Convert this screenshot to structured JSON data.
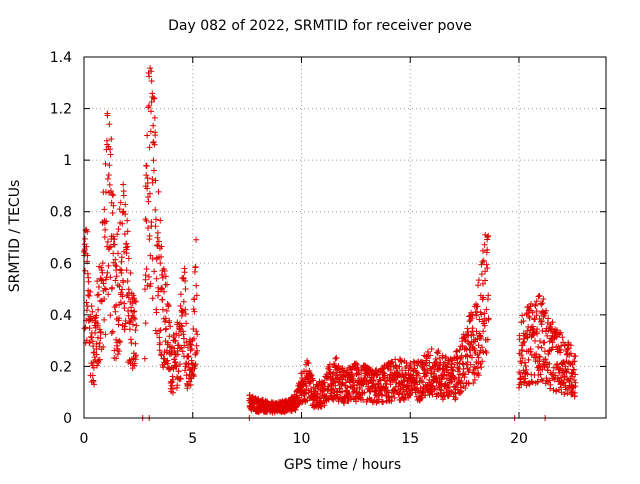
{
  "chart_data": {
    "type": "scatter",
    "title": "Day 082 of 2022, SRMTID for receiver pove",
    "xlabel": "GPS time / hours",
    "ylabel": "SRMTID / TECUs",
    "xlim": [
      0,
      24
    ],
    "ylim": [
      0,
      1.4
    ],
    "xticks": [
      "0",
      "5",
      "10",
      "15",
      "20"
    ],
    "yticks": [
      "0",
      "0.2",
      "0.4",
      "0.6",
      "0.8",
      "1",
      "1.2",
      "1.4"
    ],
    "grid": true,
    "marker": "plus",
    "color": "#e00000",
    "segments": [
      {
        "x": [
          0.0,
          0.2,
          0.4,
          0.6,
          0.8,
          1.0,
          1.1,
          1.2,
          1.4,
          1.6,
          1.8,
          2.0,
          2.2,
          2.4
        ],
        "y": [
          0.55,
          0.45,
          0.25,
          0.35,
          0.45,
          0.7,
          0.95,
          0.8,
          0.45,
          0.55,
          0.6,
          0.5,
          0.35,
          0.3
        ]
      },
      {
        "x": [
          2.8,
          3.0,
          3.2,
          3.4,
          3.6,
          3.8,
          4.0,
          4.2,
          4.4,
          4.6,
          4.8,
          5.0,
          5.2
        ],
        "y": [
          0.5,
          0.95,
          0.85,
          0.65,
          0.45,
          0.35,
          0.22,
          0.2,
          0.3,
          0.42,
          0.2,
          0.2,
          0.55
        ]
      },
      {
        "x": [
          7.6,
          8.0,
          8.5,
          9.0,
          9.5,
          9.8,
          10.0,
          10.3,
          10.6,
          11.0,
          11.5,
          12.0,
          12.5,
          13.0,
          13.5,
          14.0,
          14.5,
          15.0,
          15.5,
          16.0,
          16.5,
          17.0,
          17.5,
          18.0,
          18.4,
          18.6
        ],
        "y": [
          0.06,
          0.05,
          0.04,
          0.04,
          0.05,
          0.07,
          0.12,
          0.15,
          0.08,
          0.1,
          0.16,
          0.12,
          0.14,
          0.13,
          0.12,
          0.14,
          0.15,
          0.14,
          0.15,
          0.18,
          0.16,
          0.15,
          0.22,
          0.3,
          0.45,
          0.55
        ]
      },
      {
        "x": [
          20.0,
          20.4,
          20.8,
          21.0,
          21.4,
          21.8,
          22.2,
          22.6
        ],
        "y": [
          0.25,
          0.28,
          0.3,
          0.32,
          0.25,
          0.22,
          0.2,
          0.17
        ]
      }
    ],
    "zero_markers_x": [
      2.7,
      3.0,
      7.6,
      19.8,
      21.2
    ]
  }
}
